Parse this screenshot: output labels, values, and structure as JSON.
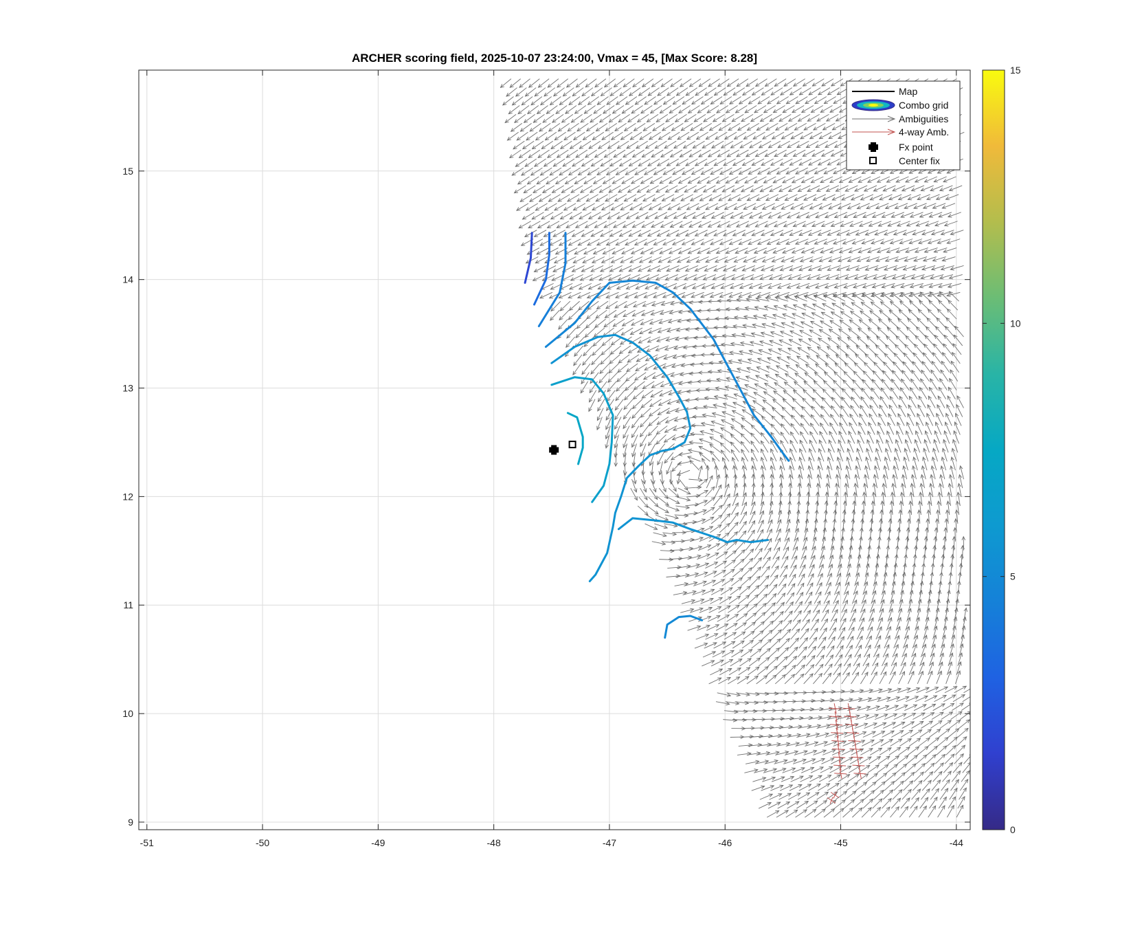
{
  "chart_data": {
    "type": "vector-field",
    "title": "ARCHER scoring field, 2025-10-07 23:24:00, Vmax = 45, [Max Score: 8.28]",
    "xlim": [
      -51.07,
      -43.88
    ],
    "ylim": [
      8.93,
      15.93
    ],
    "x_ticks": [
      -51,
      -50,
      -49,
      -48,
      -47,
      -46,
      -45,
      -44
    ],
    "x_tick_labels": [
      "-51",
      "-50",
      "-49",
      "-48",
      "-47",
      "-46",
      "-45",
      "-44"
    ],
    "y_ticks": [
      9,
      10,
      11,
      12,
      13,
      14,
      15
    ],
    "y_tick_labels": [
      "9",
      "10",
      "11",
      "12",
      "13",
      "14",
      "15"
    ],
    "grid": true,
    "legend": {
      "placement": "top-right",
      "entries": [
        {
          "name": "Map",
          "symbol": "line",
          "color": "#000000"
        },
        {
          "name": "Combo grid",
          "symbol": "ellipses",
          "color": "#2b3ec8"
        },
        {
          "name": "Ambiguities",
          "symbol": "arrow",
          "color": "#707070"
        },
        {
          "name": "4-way Amb.",
          "symbol": "arrow",
          "color": "#c0504d"
        },
        {
          "name": "Fx point",
          "symbol": "cross",
          "color": "#000000"
        },
        {
          "name": "Center fix",
          "symbol": "square",
          "color": "#000000"
        }
      ]
    },
    "colorbar": {
      "range": [
        0,
        15
      ],
      "ticks": [
        0,
        5,
        10,
        15
      ],
      "tick_labels": [
        "0",
        "5",
        "10",
        "15"
      ],
      "colormap": "parula"
    },
    "fx_point": {
      "x": -47.48,
      "y": 12.43
    },
    "center_fix": {
      "x": -47.32,
      "y": 12.48
    },
    "contours": [
      {
        "level": 1.8,
        "points": [
          [
            -47.73,
            13.97
          ],
          [
            -47.68,
            14.2
          ],
          [
            -47.67,
            14.43
          ]
        ]
      },
      {
        "level": 3.5,
        "points": [
          [
            -47.65,
            13.77
          ],
          [
            -47.55,
            14.0
          ],
          [
            -47.52,
            14.23
          ],
          [
            -47.52,
            14.43
          ]
        ]
      },
      {
        "level": 4.4,
        "points": [
          [
            -47.61,
            13.57
          ],
          [
            -47.43,
            13.88
          ],
          [
            -47.38,
            14.15
          ],
          [
            -47.38,
            14.43
          ]
        ]
      },
      {
        "level": 4.8,
        "points": [
          [
            -47.55,
            13.38
          ],
          [
            -47.3,
            13.6
          ],
          [
            -47.15,
            13.8
          ],
          [
            -47.0,
            13.97
          ],
          [
            -46.8,
            13.99
          ],
          [
            -46.6,
            13.97
          ],
          [
            -46.45,
            13.88
          ],
          [
            -46.3,
            13.73
          ],
          [
            -46.1,
            13.45
          ],
          [
            -46.0,
            13.25
          ],
          [
            -45.85,
            12.95
          ],
          [
            -45.75,
            12.75
          ],
          [
            -45.6,
            12.55
          ],
          [
            -45.5,
            12.4
          ],
          [
            -45.45,
            12.33
          ]
        ]
      },
      {
        "level": 5.6,
        "points": [
          [
            -47.5,
            13.23
          ],
          [
            -47.3,
            13.38
          ],
          [
            -47.1,
            13.47
          ],
          [
            -46.95,
            13.49
          ],
          [
            -46.8,
            13.42
          ],
          [
            -46.65,
            13.3
          ],
          [
            -46.5,
            13.1
          ],
          [
            -46.4,
            12.92
          ],
          [
            -46.33,
            12.78
          ],
          [
            -46.3,
            12.63
          ],
          [
            -46.35,
            12.5
          ],
          [
            -46.45,
            12.44
          ],
          [
            -46.55,
            12.42
          ],
          [
            -46.65,
            12.38
          ],
          [
            -46.75,
            12.28
          ],
          [
            -46.85,
            12.17
          ],
          [
            -46.9,
            12.0
          ],
          [
            -46.95,
            11.85
          ],
          [
            -46.97,
            11.72
          ],
          [
            -47.02,
            11.48
          ],
          [
            -47.12,
            11.28
          ],
          [
            -47.17,
            11.22
          ]
        ]
      },
      {
        "level": 5.6,
        "points": [
          [
            -46.92,
            11.7
          ],
          [
            -46.8,
            11.8
          ],
          [
            -46.6,
            11.78
          ],
          [
            -46.45,
            11.76
          ],
          [
            -46.3,
            11.7
          ],
          [
            -46.1,
            11.63
          ],
          [
            -45.98,
            11.58
          ],
          [
            -45.9,
            11.6
          ],
          [
            -45.78,
            11.58
          ],
          [
            -45.63,
            11.6
          ]
        ]
      },
      {
        "level": 5.0,
        "points": [
          [
            -46.52,
            10.7
          ],
          [
            -46.5,
            10.82
          ],
          [
            -46.4,
            10.89
          ],
          [
            -46.3,
            10.9
          ],
          [
            -46.2,
            10.86
          ]
        ]
      },
      {
        "level": 6.6,
        "points": [
          [
            -47.5,
            13.03
          ],
          [
            -47.3,
            13.1
          ],
          [
            -47.15,
            13.08
          ],
          [
            -47.05,
            12.95
          ],
          [
            -46.97,
            12.75
          ],
          [
            -46.98,
            12.5
          ],
          [
            -47.0,
            12.3
          ],
          [
            -47.05,
            12.1
          ],
          [
            -47.15,
            11.95
          ]
        ]
      },
      {
        "level": 7.3,
        "points": [
          [
            -47.36,
            12.77
          ],
          [
            -47.28,
            12.73
          ],
          [
            -47.23,
            12.55
          ],
          [
            -47.23,
            12.45
          ],
          [
            -47.27,
            12.3
          ]
        ]
      }
    ],
    "four_way_ambiguities_region": {
      "x": [
        -45.1,
        -44.8
      ],
      "y": [
        9.2,
        10.05
      ]
    }
  }
}
